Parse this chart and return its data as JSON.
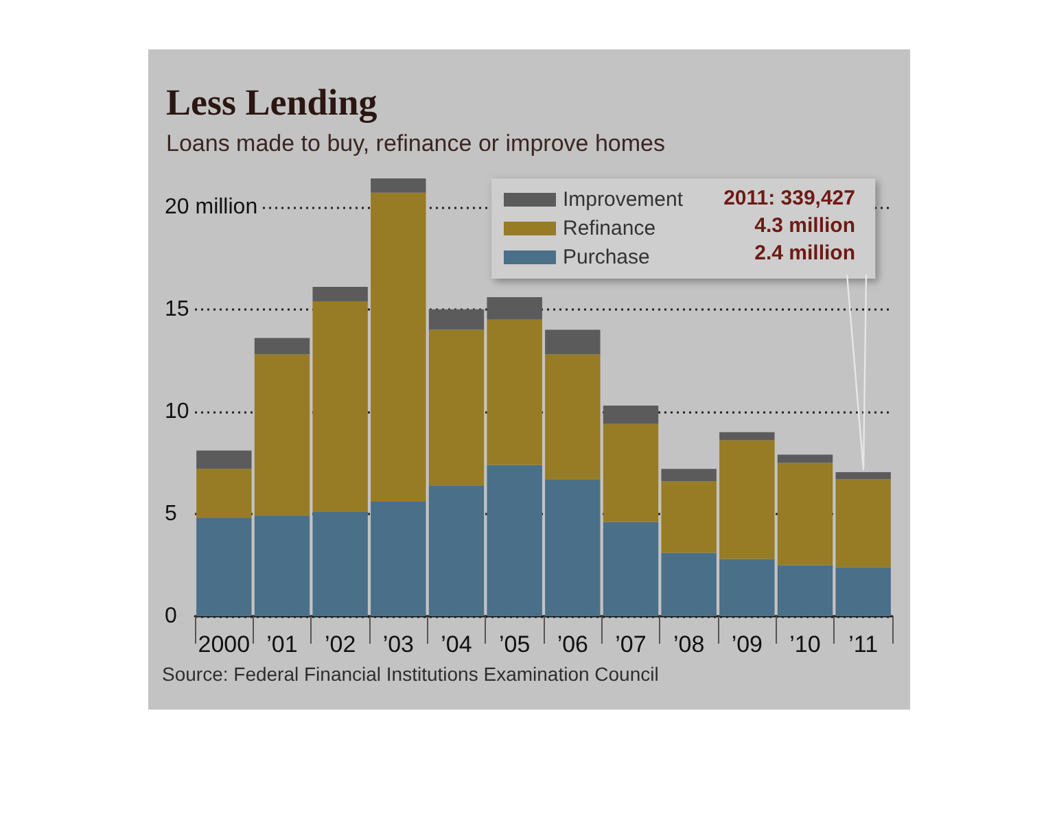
{
  "chart_data": {
    "type": "bar",
    "title": "Less Lending",
    "subtitle": "Loans made to buy, refinance or improve homes",
    "categories": [
      "2000",
      "’01",
      "’02",
      "’03",
      "’04",
      "’05",
      "’06",
      "’07",
      "’08",
      "’09",
      "’10",
      "’11"
    ],
    "series": [
      {
        "name": "Purchase",
        "color": "#4a6f88",
        "values": [
          4.8,
          4.9,
          5.1,
          5.6,
          6.4,
          7.4,
          6.7,
          4.6,
          3.1,
          2.8,
          2.5,
          2.4
        ]
      },
      {
        "name": "Refinance",
        "color": "#977c25",
        "values": [
          2.4,
          7.9,
          10.3,
          15.1,
          7.6,
          7.1,
          6.1,
          4.8,
          3.5,
          5.8,
          5.0,
          4.3
        ]
      },
      {
        "name": "Improvement",
        "color": "#5c5b5b",
        "values": [
          0.9,
          0.8,
          0.7,
          0.7,
          1.0,
          1.1,
          1.2,
          0.9,
          0.6,
          0.4,
          0.4,
          0.34
        ]
      }
    ],
    "stacked": true,
    "ylim": [
      0,
      21.4
    ],
    "yticks": [
      0,
      5,
      10,
      15,
      {
        "value": 20,
        "label": "20 million"
      }
    ],
    "grid": "y",
    "legend": "top right",
    "annotations": [
      "2011: 339,427",
      "4.3 million",
      "2.4 million",
      "Source: Federal Financial Institutions Examination Council"
    ]
  }
}
